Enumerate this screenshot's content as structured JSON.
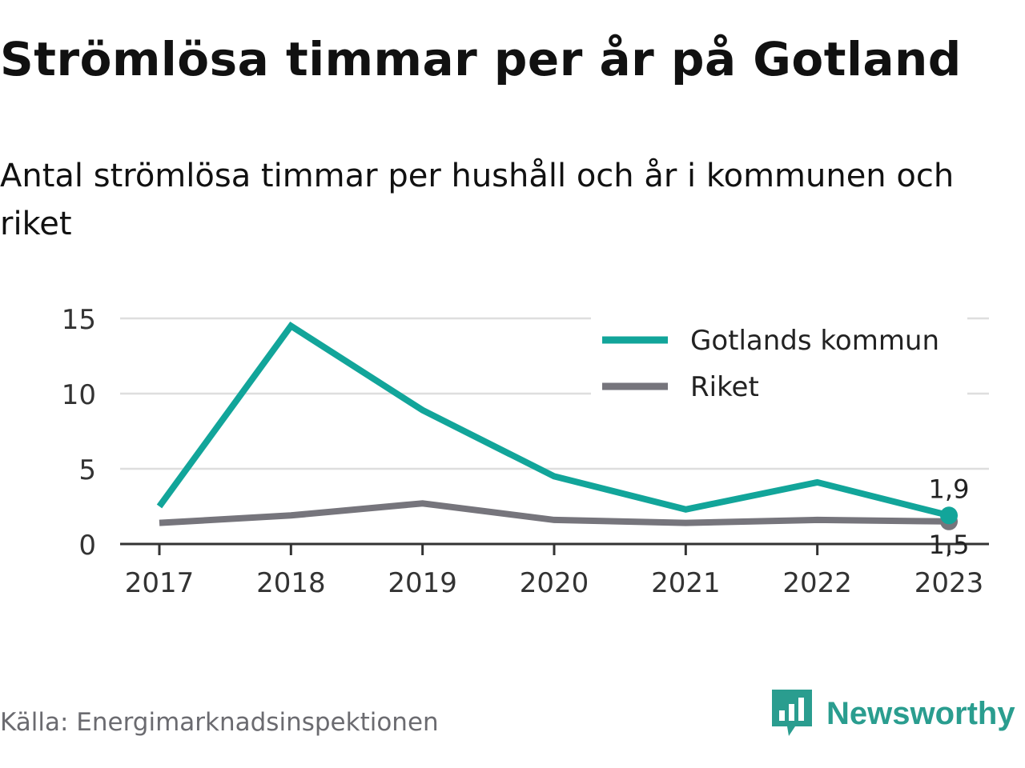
{
  "header": {
    "title": "Strömlösa timmar per år på Gotland",
    "subtitle": "Antal strömlösa timmar per hushåll och år i kommunen och riket"
  },
  "footer": {
    "source": "Källa: Energimarknadsinspektionen",
    "brand": "Newsworthy",
    "brand_icon": "bar-chart-speech-bubble-icon"
  },
  "colors": {
    "gotland": "#12a59a",
    "riket": "#76757c",
    "grid": "#dedede",
    "brand": "#2a9d8f"
  },
  "chart_data": {
    "type": "line",
    "x": [
      "2017",
      "2018",
      "2019",
      "2020",
      "2021",
      "2022",
      "2023"
    ],
    "ylim": [
      0,
      15
    ],
    "yticks": [
      "0",
      "5",
      "10",
      "15"
    ],
    "grid": true,
    "legend_position": "top-right",
    "series": [
      {
        "name": "Gotlands kommun",
        "values": [
          2.5,
          14.5,
          8.9,
          4.5,
          2.3,
          4.1,
          1.9
        ],
        "end_label": "1,9"
      },
      {
        "name": "Riket",
        "values": [
          1.4,
          1.9,
          2.7,
          1.6,
          1.4,
          1.6,
          1.5
        ],
        "end_label": "1,5"
      }
    ]
  }
}
